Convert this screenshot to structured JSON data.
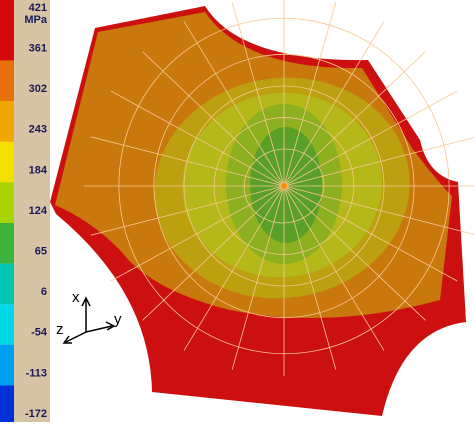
{
  "legend": {
    "unit": "MPa",
    "ticks": [
      421,
      361,
      302,
      243,
      184,
      124,
      65,
      6,
      -54,
      -113,
      -172
    ],
    "colors": [
      "#d40a0a",
      "#e8700a",
      "#f0a800",
      "#f4e000",
      "#a8d400",
      "#3cb43c",
      "#00c8b4",
      "#00d8e8",
      "#00a0f0",
      "#0030d8"
    ]
  },
  "triad": {
    "x": "x",
    "y": "y",
    "z": "z"
  }
}
